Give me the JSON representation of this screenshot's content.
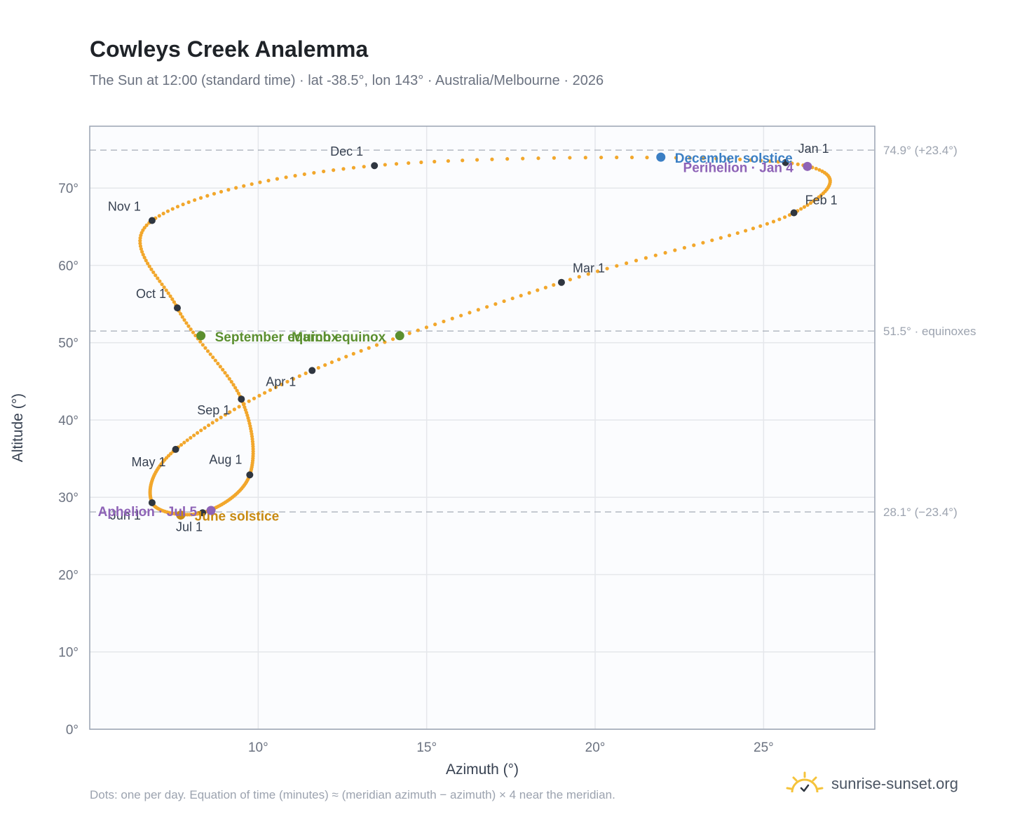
{
  "header": {
    "title": "Cowleys Creek Analemma",
    "subtitle": "The Sun at 12:00 (standard time) · lat -38.5°, lon 143° · Australia/Melbourne · 2026"
  },
  "footer": {
    "note": "Dots: one per day. Equation of time (minutes) ≈ (meridian azimuth − azimuth) × 4 near the meridian.",
    "brand": "sunrise-sunset.org",
    "brand_icon": "sun-logo-icon"
  },
  "colors": {
    "curve": "#f2a72c",
    "month_dot": "#2f3640",
    "solstice_dec": "#3b7fc4",
    "equinox": "#5b8f2f",
    "solstice_jun": "#c88a12",
    "apsis": "#8e63b7",
    "grid": "#e5e7eb",
    "ref_line": "#9ca3af",
    "plot_bg": "#fbfcfe"
  },
  "chart_data": {
    "type": "scatter",
    "xlabel": "Azimuth (°)",
    "ylabel": "Altitude (°)",
    "xlim": [
      5,
      28.3
    ],
    "ylim": [
      0,
      78
    ],
    "x_ticks": [
      10,
      15,
      20,
      25
    ],
    "x_tick_labels": [
      "10°",
      "15°",
      "20°",
      "25°"
    ],
    "y_ticks": [
      0,
      10,
      20,
      30,
      40,
      50,
      60,
      70
    ],
    "y_tick_labels": [
      "0°",
      "10°",
      "20°",
      "30°",
      "40°",
      "50°",
      "60°",
      "70°"
    ],
    "grid": true,
    "dots_per_day": true,
    "month_points": [
      {
        "label": "Jan 1",
        "x": 25.65,
        "y": 73.3
      },
      {
        "label": "Feb 1",
        "x": 25.9,
        "y": 66.8
      },
      {
        "label": "Mar 1",
        "x": 19.0,
        "y": 57.8
      },
      {
        "label": "Apr 1",
        "x": 11.6,
        "y": 46.4
      },
      {
        "label": "May 1",
        "x": 7.55,
        "y": 36.2
      },
      {
        "label": "Jun 1",
        "x": 6.85,
        "y": 29.3
      },
      {
        "label": "Jul 1",
        "x": 8.35,
        "y": 28.0
      },
      {
        "label": "Aug 1",
        "x": 9.75,
        "y": 32.9
      },
      {
        "label": "Sep 1",
        "x": 9.5,
        "y": 42.7
      },
      {
        "label": "Oct 1",
        "x": 7.6,
        "y": 54.5
      },
      {
        "label": "Nov 1",
        "x": 6.85,
        "y": 65.8
      },
      {
        "label": "Dec 1",
        "x": 13.45,
        "y": 72.9
      }
    ],
    "events": [
      {
        "label": "December solstice",
        "x": 21.95,
        "y": 74.0,
        "color": "#3b7fc4"
      },
      {
        "label": "Perihelion · Jan 4",
        "x": 26.3,
        "y": 72.8,
        "color": "#8e63b7"
      },
      {
        "label": "March equinox",
        "x": 14.2,
        "y": 50.9,
        "color": "#5b8f2f"
      },
      {
        "label": "September equinox",
        "x": 8.3,
        "y": 50.9,
        "color": "#5b8f2f"
      },
      {
        "label": "June solstice",
        "x": 7.7,
        "y": 27.7,
        "color": "#c88a12"
      },
      {
        "label": "Aphelion · Jul 5",
        "x": 8.6,
        "y": 28.3,
        "color": "#8e63b7"
      }
    ],
    "reference_lines": [
      {
        "y": 74.9,
        "label": "74.9° (+23.4°)"
      },
      {
        "y": 51.5,
        "label": "51.5° · equinoxes"
      },
      {
        "y": 28.1,
        "label": "28.1° (−23.4°)"
      }
    ]
  }
}
